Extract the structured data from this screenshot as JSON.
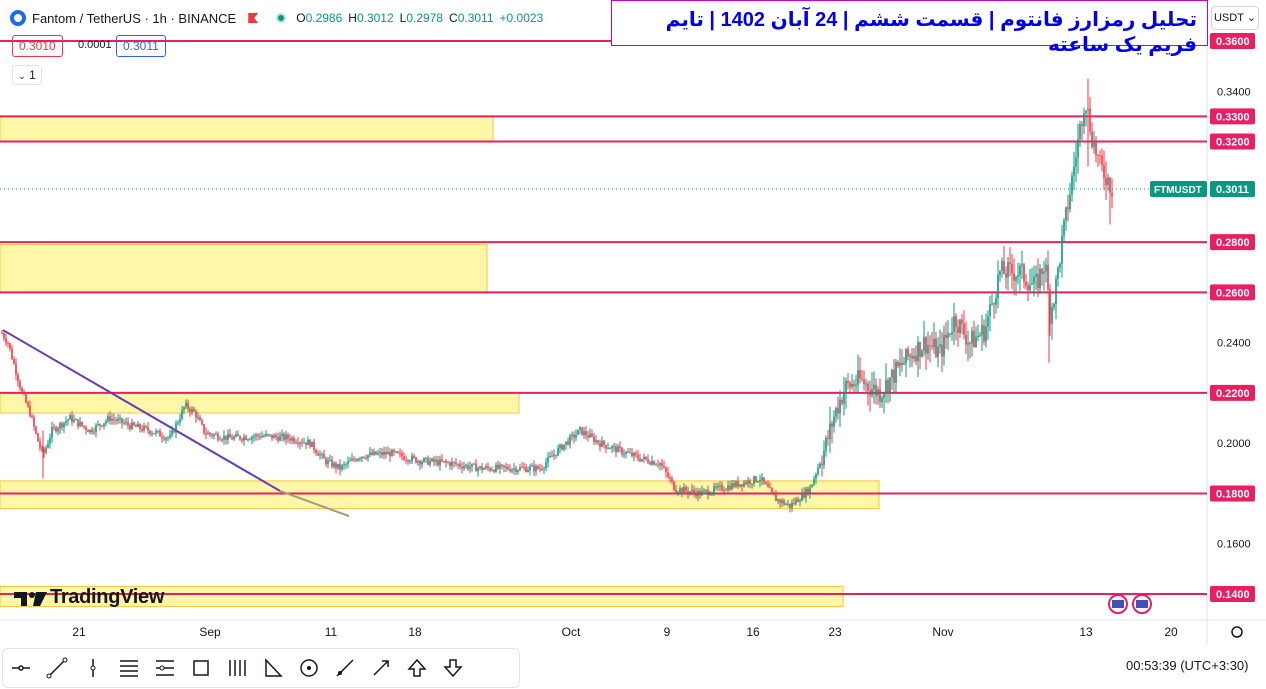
{
  "header": {
    "symbol": "Fantom / TetherUS · 1h · BINANCE",
    "ohlc": [
      {
        "k": "O",
        "v": "0.2986"
      },
      {
        "k": "H",
        "v": "0.3012"
      },
      {
        "k": "L",
        "v": "0.2978"
      },
      {
        "k": "C",
        "v": "0.3011"
      },
      {
        "k": "",
        "v": "+0.0023"
      }
    ]
  },
  "trade": {
    "sell": "0.3010",
    "spread": "0.0001",
    "buy": "0.3011",
    "lot": "1"
  },
  "title": "تحلیل رمزارز فانتوم | قسمت ششم | 24 آبان 1402 | تایم فریم یک ساعته",
  "currency": "USDT ⌄",
  "footer": {
    "clock": "00:53:39 (UTC+3:30)",
    "brand": "TradingView"
  },
  "colors": {
    "level": "#e91e63",
    "zone": "#fff59d",
    "zone_edge": "#f5c542",
    "trend": "#673ab7",
    "up": "#089981",
    "down": "#f23645",
    "current": "#089981"
  },
  "tools": [
    "crosshair-icon",
    "trend-line-icon",
    "vertical-line-icon",
    "fib-retracement-icon",
    "pitchfork-icon",
    "rectangle-icon",
    "gann-fan-icon",
    "triangle-pattern-icon",
    "circle-icon",
    "brush-icon",
    "arrow-icon",
    "arrow-up-icon",
    "arrow-down-icon"
  ],
  "chart_data": {
    "type": "candlestick",
    "title": "",
    "price_scale": {
      "ticks": [
        "0.3400",
        "0.2400",
        "0.2000",
        "0.1600"
      ],
      "range": [
        0.125,
        0.365
      ]
    },
    "time_axis": {
      "labels": [
        "21",
        "Sep",
        "11",
        "18",
        "Oct",
        "9",
        "16",
        "23",
        "Nov",
        "13",
        "20"
      ]
    },
    "horizontal_levels": [
      0.36,
      0.33,
      0.32,
      0.28,
      0.26,
      0.22,
      0.18,
      0.14
    ],
    "level_labels": [
      "0.3600",
      "0.3300",
      "0.3200",
      "0.2800",
      "0.2600",
      "0.2200",
      "0.1800",
      "0.1400"
    ],
    "current_price": {
      "symbol": "FTMUSDT",
      "value": 0.3011,
      "label": "0.3011"
    },
    "zones": [
      {
        "low": 0.32,
        "high": 0.33
      },
      {
        "low": 0.26,
        "high": 0.279
      },
      {
        "low": 0.212,
        "high": 0.22
      },
      {
        "low": 0.174,
        "high": 0.185
      },
      {
        "low": 0.135,
        "high": 0.143
      }
    ],
    "trendline": {
      "from": 0.245,
      "to": 0.171
    },
    "price_path": [
      [
        0,
        0.245
      ],
      [
        8,
        0.24
      ],
      [
        15,
        0.23
      ],
      [
        22,
        0.22
      ],
      [
        30,
        0.212
      ],
      [
        37,
        0.202
      ],
      [
        43,
        0.195
      ],
      [
        52,
        0.205
      ],
      [
        70,
        0.21
      ],
      [
        90,
        0.205
      ],
      [
        110,
        0.21
      ],
      [
        130,
        0.207
      ],
      [
        150,
        0.205
      ],
      [
        170,
        0.202
      ],
      [
        185,
        0.215
      ],
      [
        195,
        0.212
      ],
      [
        205,
        0.204
      ],
      [
        230,
        0.202
      ],
      [
        260,
        0.203
      ],
      [
        290,
        0.202
      ],
      [
        310,
        0.2
      ],
      [
        325,
        0.193
      ],
      [
        340,
        0.19
      ],
      [
        360,
        0.195
      ],
      [
        390,
        0.196
      ],
      [
        420,
        0.193
      ],
      [
        450,
        0.192
      ],
      [
        480,
        0.19
      ],
      [
        510,
        0.19
      ],
      [
        540,
        0.19
      ],
      [
        560,
        0.198
      ],
      [
        580,
        0.205
      ],
      [
        600,
        0.2
      ],
      [
        620,
        0.197
      ],
      [
        640,
        0.194
      ],
      [
        660,
        0.192
      ],
      [
        675,
        0.182
      ],
      [
        700,
        0.18
      ],
      [
        720,
        0.182
      ],
      [
        740,
        0.184
      ],
      [
        760,
        0.186
      ],
      [
        775,
        0.178
      ],
      [
        790,
        0.175
      ],
      [
        810,
        0.182
      ],
      [
        825,
        0.198
      ],
      [
        835,
        0.212
      ],
      [
        845,
        0.222
      ],
      [
        860,
        0.225
      ],
      [
        880,
        0.22
      ],
      [
        895,
        0.228
      ],
      [
        910,
        0.235
      ],
      [
        925,
        0.24
      ],
      [
        940,
        0.236
      ],
      [
        955,
        0.25
      ],
      [
        970,
        0.24
      ],
      [
        985,
        0.245
      ],
      [
        1000,
        0.268
      ],
      [
        1020,
        0.268
      ],
      [
        1035,
        0.262
      ],
      [
        1045,
        0.272
      ],
      [
        1050,
        0.252
      ],
      [
        1055,
        0.26
      ],
      [
        1062,
        0.28
      ],
      [
        1070,
        0.3
      ],
      [
        1078,
        0.32
      ],
      [
        1085,
        0.338
      ],
      [
        1092,
        0.322
      ],
      [
        1100,
        0.31
      ],
      [
        1108,
        0.305
      ],
      [
        1112,
        0.301
      ]
    ]
  }
}
